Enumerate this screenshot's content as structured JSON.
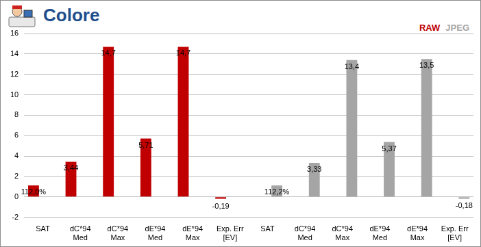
{
  "chart_data": {
    "type": "bar",
    "title": "Colore",
    "categories": [
      [
        "SAT"
      ],
      [
        "dC*94",
        "Med"
      ],
      [
        "dC*94",
        "Max"
      ],
      [
        "dE*94",
        "Med"
      ],
      [
        "dE*94",
        "Max"
      ],
      [
        "Exp. Err",
        "[EV]"
      ],
      [
        "SAT"
      ],
      [
        "dC*94",
        "Med"
      ],
      [
        "dC*94",
        "Max"
      ],
      [
        "dE*94",
        "Med"
      ],
      [
        "dE*94",
        "Max"
      ],
      [
        "Exp. Err",
        "[EV]"
      ]
    ],
    "series": [
      {
        "name": "RAW",
        "color": "#c00000",
        "values": [
          1.12,
          3.44,
          14.7,
          5.71,
          14.7,
          -0.19,
          null,
          null,
          null,
          null,
          null,
          null
        ],
        "value_labels": [
          "112,0%",
          "3,44",
          "14,7",
          "5,71",
          "14,7",
          "-0,19",
          null,
          null,
          null,
          null,
          null,
          null
        ]
      },
      {
        "name": "JPEG",
        "color": "#a5a5a5",
        "values": [
          null,
          null,
          null,
          null,
          null,
          null,
          1.122,
          3.33,
          13.4,
          5.37,
          13.5,
          -0.18
        ],
        "value_labels": [
          null,
          null,
          null,
          null,
          null,
          null,
          "112,2%",
          "3,33",
          "13,4",
          "5,37",
          "13,5",
          "-0,18"
        ]
      }
    ],
    "ylim": [
      -2,
      16
    ],
    "yticks": [
      -2,
      0,
      2,
      4,
      6,
      8,
      10,
      12,
      14,
      16
    ],
    "grid": true,
    "legend": "top right",
    "data_labels": true
  }
}
